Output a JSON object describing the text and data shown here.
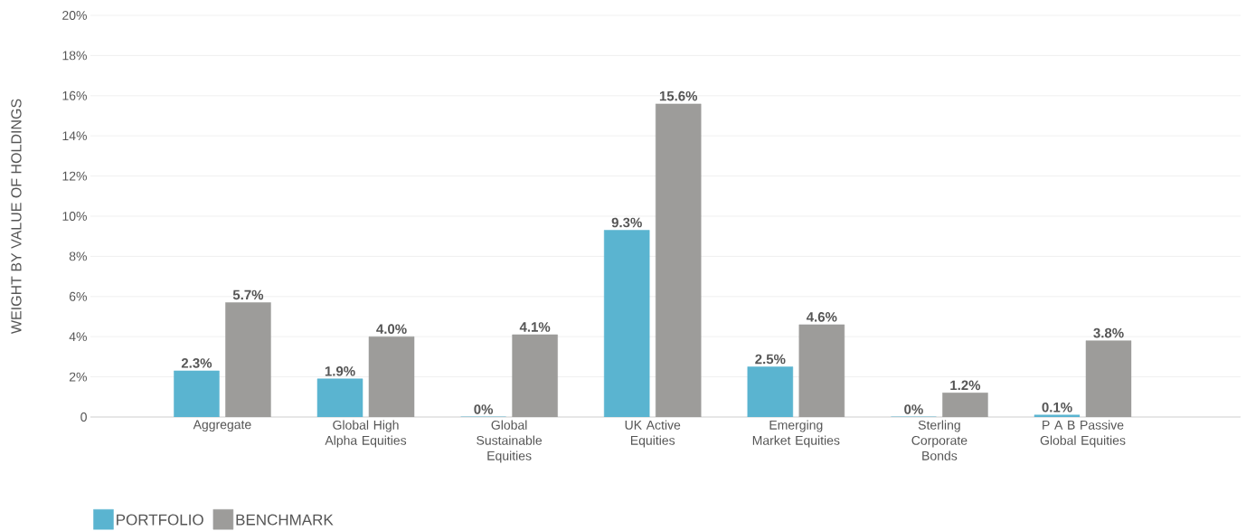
{
  "chart_data": {
    "type": "bar",
    "ylabel": "WEIGHT BY VALUE OF HOLDINGS",
    "categories": [
      "Aggregate",
      "Global High Alpha Equities",
      "Global Sustainable Equities",
      "UK Active Equities",
      "Emerging Market Equities",
      "Sterling Corporate Bonds",
      "P A B Passive Global Equities"
    ],
    "series": [
      {
        "name": "PORTFOLIO",
        "color": "#5ab4d0",
        "values": [
          2.3,
          1.9,
          0,
          9.3,
          2.5,
          0,
          0.1
        ],
        "value_labels": [
          "2.3%",
          "1.9%",
          "0%",
          "9.3%",
          "2.5%",
          "0%",
          "0.1%"
        ]
      },
      {
        "name": "BENCHMARK",
        "color": "#9d9c9a",
        "values": [
          5.7,
          4.0,
          4.1,
          15.6,
          4.6,
          1.2,
          3.8
        ],
        "value_labels": [
          "5.7%",
          "4.0%",
          "4.1%",
          "15.6%",
          "4.6%",
          "1.2%",
          "3.8%"
        ]
      }
    ],
    "ylim": [
      0,
      20
    ],
    "yticks": [
      {
        "value": 0,
        "label": "0"
      },
      {
        "value": 2,
        "label": "2%"
      },
      {
        "value": 4,
        "label": "4%"
      },
      {
        "value": 6,
        "label": "6%"
      },
      {
        "value": 8,
        "label": "8%"
      },
      {
        "value": 10,
        "label": "10%"
      },
      {
        "value": 12,
        "label": "12%"
      },
      {
        "value": 14,
        "label": "14%"
      },
      {
        "value": 16,
        "label": "16%"
      },
      {
        "value": 18,
        "label": "18%"
      },
      {
        "value": 20,
        "label": "20%"
      }
    ],
    "grid": "y",
    "legend": "bottom left"
  }
}
